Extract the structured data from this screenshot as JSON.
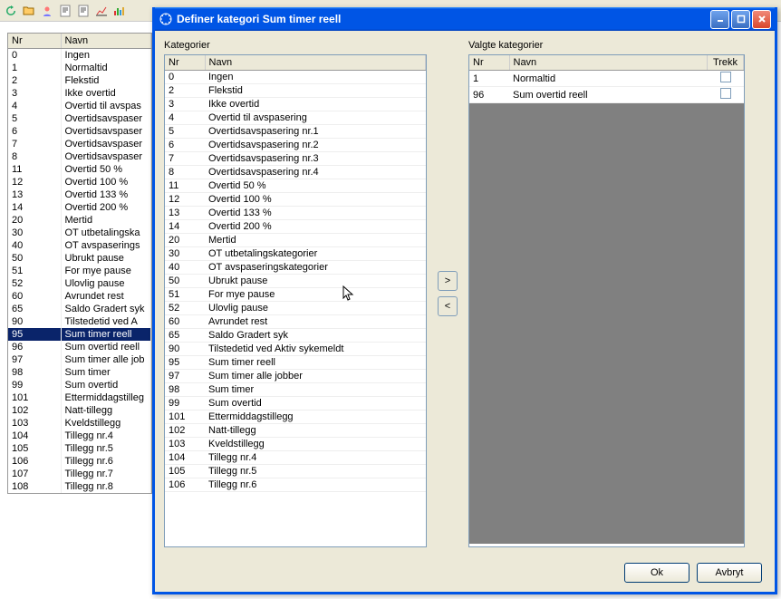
{
  "dialog": {
    "title": "Definer kategori Sum timer reell",
    "ok": "Ok",
    "cancel": "Avbryt",
    "left_label": "Kategorier",
    "right_label": "Valgte kategorier",
    "headers": {
      "nr": "Nr",
      "navn": "Navn",
      "trekk": "Trekk"
    }
  },
  "bg_table": {
    "headers": {
      "nr": "Nr",
      "navn": "Navn"
    },
    "rows": [
      {
        "nr": "0",
        "navn": "Ingen"
      },
      {
        "nr": "1",
        "navn": "Normaltid"
      },
      {
        "nr": "2",
        "navn": "Flekstid"
      },
      {
        "nr": "3",
        "navn": "Ikke overtid"
      },
      {
        "nr": "4",
        "navn": "Overtid til avspas"
      },
      {
        "nr": "5",
        "navn": "Overtidsavspaser"
      },
      {
        "nr": "6",
        "navn": "Overtidsavspaser"
      },
      {
        "nr": "7",
        "navn": "Overtidsavspaser"
      },
      {
        "nr": "8",
        "navn": "Overtidsavspaser"
      },
      {
        "nr": "11",
        "navn": "Overtid 50 %"
      },
      {
        "nr": "12",
        "navn": "Overtid 100 %"
      },
      {
        "nr": "13",
        "navn": "Overtid 133 %"
      },
      {
        "nr": "14",
        "navn": "Overtid 200 %"
      },
      {
        "nr": "20",
        "navn": "Mertid"
      },
      {
        "nr": "30",
        "navn": "OT utbetalingska"
      },
      {
        "nr": "40",
        "navn": "OT avspaserings"
      },
      {
        "nr": "50",
        "navn": "Ubrukt pause"
      },
      {
        "nr": "51",
        "navn": "For mye pause"
      },
      {
        "nr": "52",
        "navn": "Ulovlig pause"
      },
      {
        "nr": "60",
        "navn": "Avrundet rest"
      },
      {
        "nr": "65",
        "navn": "Saldo Gradert syk"
      },
      {
        "nr": "90",
        "navn": "Tilstedetid ved A"
      },
      {
        "nr": "95",
        "navn": "Sum timer reell",
        "selected": true
      },
      {
        "nr": "96",
        "navn": "Sum overtid reell"
      },
      {
        "nr": "97",
        "navn": "Sum timer alle job"
      },
      {
        "nr": "98",
        "navn": "Sum timer"
      },
      {
        "nr": "99",
        "navn": "Sum overtid"
      },
      {
        "nr": "101",
        "navn": "Ettermiddagstilleg"
      },
      {
        "nr": "102",
        "navn": "Natt-tillegg"
      },
      {
        "nr": "103",
        "navn": "Kveldstillegg"
      },
      {
        "nr": "104",
        "navn": "Tillegg nr.4"
      },
      {
        "nr": "105",
        "navn": "Tillegg nr.5"
      },
      {
        "nr": "106",
        "navn": "Tillegg nr.6"
      },
      {
        "nr": "107",
        "navn": "Tillegg nr.7"
      },
      {
        "nr": "108",
        "navn": "Tillegg nr.8"
      }
    ]
  },
  "categories": [
    {
      "nr": "0",
      "navn": "Ingen"
    },
    {
      "nr": "2",
      "navn": "Flekstid"
    },
    {
      "nr": "3",
      "navn": "Ikke overtid"
    },
    {
      "nr": "4",
      "navn": "Overtid til avspasering"
    },
    {
      "nr": "5",
      "navn": "Overtidsavspasering nr.1"
    },
    {
      "nr": "6",
      "navn": "Overtidsavspasering nr.2"
    },
    {
      "nr": "7",
      "navn": "Overtidsavspasering nr.3"
    },
    {
      "nr": "8",
      "navn": "Overtidsavspasering nr.4"
    },
    {
      "nr": "11",
      "navn": "Overtid 50 %"
    },
    {
      "nr": "12",
      "navn": "Overtid 100 %"
    },
    {
      "nr": "13",
      "navn": "Overtid 133 %"
    },
    {
      "nr": "14",
      "navn": "Overtid 200 %"
    },
    {
      "nr": "20",
      "navn": "Mertid"
    },
    {
      "nr": "30",
      "navn": "OT utbetalingskategorier"
    },
    {
      "nr": "40",
      "navn": "OT avspaseringskategorier"
    },
    {
      "nr": "50",
      "navn": "Ubrukt pause"
    },
    {
      "nr": "51",
      "navn": "For mye pause"
    },
    {
      "nr": "52",
      "navn": "Ulovlig pause"
    },
    {
      "nr": "60",
      "navn": "Avrundet rest"
    },
    {
      "nr": "65",
      "navn": "Saldo Gradert syk"
    },
    {
      "nr": "90",
      "navn": "Tilstedetid ved Aktiv sykemeldt"
    },
    {
      "nr": "95",
      "navn": "Sum timer reell"
    },
    {
      "nr": "97",
      "navn": "Sum timer alle jobber"
    },
    {
      "nr": "98",
      "navn": "Sum timer"
    },
    {
      "nr": "99",
      "navn": "Sum overtid"
    },
    {
      "nr": "101",
      "navn": "Ettermiddagstillegg"
    },
    {
      "nr": "102",
      "navn": "Natt-tillegg"
    },
    {
      "nr": "103",
      "navn": "Kveldstillegg"
    },
    {
      "nr": "104",
      "navn": "Tillegg nr.4"
    },
    {
      "nr": "105",
      "navn": "Tillegg nr.5"
    },
    {
      "nr": "106",
      "navn": "Tillegg nr.6"
    }
  ],
  "selected": [
    {
      "nr": "1",
      "navn": "Normaltid"
    },
    {
      "nr": "96",
      "navn": "Sum overtid reell"
    }
  ]
}
